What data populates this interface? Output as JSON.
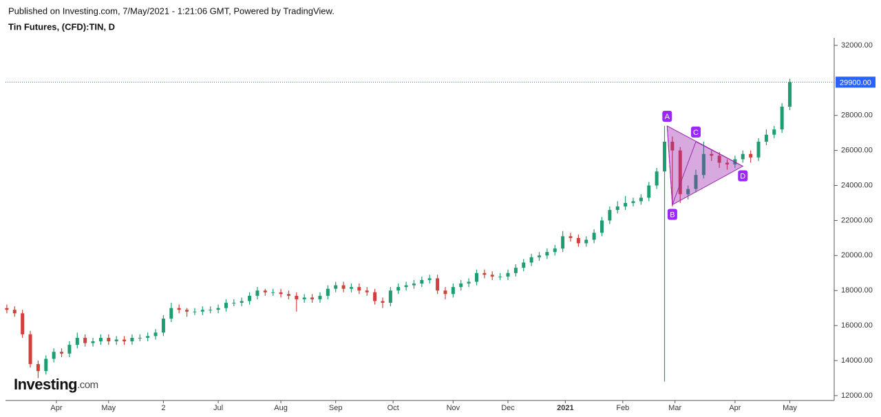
{
  "header": {
    "published": "Published on Investing.com, 7/May/2021 - 1:21:06 GMT, Powered by TradingView.",
    "symbol": "Tin Futures, (CFD):TIN, D"
  },
  "logo": {
    "brand": "Investing",
    "suffix": ".com"
  },
  "chart_data": {
    "type": "candlestick",
    "up_color": "#1f9d72",
    "down_color": "#d3403a",
    "x": [
      0,
      3,
      6,
      9,
      12,
      15,
      18,
      21,
      24,
      27,
      30,
      33,
      36,
      39,
      42,
      45,
      48,
      51,
      54,
      57,
      60,
      63,
      66,
      69,
      72,
      75,
      78,
      81,
      84,
      87,
      90,
      93,
      96,
      99,
      102,
      105,
      108,
      111,
      114,
      117,
      120,
      123,
      126,
      129,
      132,
      135,
      138,
      141,
      144,
      147,
      150,
      153,
      156,
      159,
      162,
      165,
      168,
      171,
      174,
      177,
      180,
      183,
      186,
      189,
      192,
      195,
      198,
      201,
      204,
      207,
      210,
      213,
      216,
      219,
      222,
      225,
      228,
      231,
      234,
      237,
      240,
      243,
      246,
      249,
      252,
      255,
      258,
      261,
      264,
      267,
      270,
      273,
      276,
      279,
      282,
      285,
      288,
      291,
      294,
      297,
      300
    ],
    "open": [
      17000,
      16900,
      16700,
      15500,
      13800,
      13400,
      14100,
      14500,
      14400,
      14900,
      15300,
      15000,
      15100,
      15300,
      15100,
      15200,
      15100,
      15300,
      15300,
      15400,
      15600,
      16400,
      17000,
      16900,
      16800,
      16800,
      16900,
      16900,
      17000,
      17300,
      17300,
      17400,
      17700,
      18000,
      17900,
      17900,
      17800,
      17700,
      17500,
      17600,
      17500,
      17700,
      18100,
      18300,
      18100,
      18200,
      18000,
      17900,
      17400,
      17300,
      18000,
      18200,
      18300,
      18400,
      18600,
      18700,
      18000,
      17800,
      18200,
      18400,
      18500,
      19000,
      18900,
      18800,
      18800,
      19000,
      19300,
      19600,
      19900,
      20000,
      20200,
      20400,
      21100,
      21000,
      20700,
      20900,
      21300,
      22000,
      22600,
      22800,
      23000,
      23100,
      23300,
      24000,
      24800,
      26500,
      26000,
      23500,
      23800,
      24600,
      25800,
      25700,
      25300,
      25200,
      25500,
      25800,
      25600,
      26500,
      26900,
      27200,
      28500
    ],
    "high": [
      17200,
      17100,
      16900,
      15700,
      14000,
      14300,
      14700,
      14700,
      15100,
      15600,
      15500,
      15300,
      15500,
      15500,
      15400,
      15400,
      15500,
      15500,
      15600,
      15800,
      16600,
      17300,
      17200,
      17000,
      17000,
      17100,
      17100,
      17200,
      17500,
      17500,
      17600,
      17900,
      18200,
      18100,
      18100,
      18100,
      18000,
      17900,
      17800,
      17800,
      17900,
      18300,
      18500,
      18500,
      18400,
      18400,
      18200,
      18100,
      17600,
      18200,
      18400,
      18500,
      18600,
      18800,
      18900,
      18900,
      18200,
      18400,
      18600,
      18700,
      19200,
      19200,
      19100,
      19000,
      19200,
      19500,
      19800,
      20100,
      20200,
      20400,
      20600,
      21400,
      21300,
      21200,
      21100,
      21500,
      22200,
      22800,
      23100,
      23400,
      23300,
      23500,
      24200,
      25000,
      27400,
      26800,
      26200,
      24000,
      24900,
      26500,
      26000,
      25900,
      25500,
      25700,
      26000,
      26000,
      26700,
      27200,
      27400,
      28700,
      30100
    ],
    "low": [
      16700,
      16500,
      15300,
      13600,
      13000,
      13200,
      13900,
      14200,
      14200,
      14700,
      14800,
      14800,
      14900,
      14900,
      14900,
      14900,
      14900,
      15100,
      15100,
      15200,
      15400,
      16200,
      16700,
      16500,
      16600,
      16600,
      16700,
      16700,
      16800,
      17100,
      17100,
      17200,
      17500,
      17700,
      17700,
      17600,
      17500,
      16800,
      17300,
      17300,
      17300,
      17500,
      17900,
      17900,
      17900,
      17800,
      17700,
      17200,
      17000,
      17100,
      17800,
      18000,
      18100,
      18200,
      18400,
      17800,
      17500,
      17600,
      18000,
      18200,
      18300,
      18700,
      18600,
      18600,
      18600,
      18800,
      19100,
      19400,
      19700,
      19800,
      20000,
      20200,
      20800,
      20500,
      20500,
      20700,
      21100,
      21800,
      22400,
      22600,
      22800,
      22900,
      23100,
      23800,
      12800,
      22800,
      23000,
      23200,
      23600,
      24400,
      25400,
      25000,
      24900,
      25000,
      25300,
      25300,
      25400,
      26300,
      26700,
      27000,
      28300
    ],
    "close": [
      16900,
      16700,
      15500,
      13800,
      13400,
      14100,
      14500,
      14400,
      14900,
      15300,
      15000,
      15100,
      15300,
      15100,
      15200,
      15100,
      15300,
      15300,
      15400,
      15600,
      16400,
      17000,
      16900,
      16800,
      16800,
      16900,
      16900,
      17000,
      17300,
      17300,
      17400,
      17700,
      18000,
      17900,
      17900,
      17800,
      17700,
      17500,
      17600,
      17500,
      17700,
      18100,
      18300,
      18100,
      18200,
      18000,
      17900,
      17400,
      17300,
      18000,
      18200,
      18300,
      18400,
      18600,
      18700,
      18000,
      17800,
      18200,
      18400,
      18500,
      19000,
      18900,
      18800,
      18800,
      19000,
      19300,
      19600,
      19900,
      20000,
      20200,
      20400,
      21100,
      21000,
      20700,
      20900,
      21300,
      22000,
      22600,
      22800,
      23000,
      23100,
      23300,
      24000,
      24800,
      26500,
      26000,
      23500,
      23800,
      24600,
      25800,
      25700,
      25300,
      25200,
      25500,
      25800,
      25600,
      26500,
      26900,
      27200,
      28500,
      29900
    ],
    "xlim": [
      -0.5,
      317
    ],
    "xticks": [
      {
        "value": 19,
        "label": "Apr"
      },
      {
        "value": 39,
        "label": "May"
      },
      {
        "value": 60,
        "label": "2"
      },
      {
        "value": 81,
        "label": "Jul"
      },
      {
        "value": 105,
        "label": "Aug"
      },
      {
        "value": 126,
        "label": "Sep"
      },
      {
        "value": 148,
        "label": "Oct"
      },
      {
        "value": 171,
        "label": "Nov"
      },
      {
        "value": 192,
        "label": "Dec"
      },
      {
        "value": 214,
        "label": "2021"
      },
      {
        "value": 236,
        "label": "Feb"
      },
      {
        "value": 256,
        "label": "Mar"
      },
      {
        "value": 279,
        "label": "Apr"
      },
      {
        "value": 300,
        "label": "May"
      }
    ],
    "ylim": [
      11800,
      32430
    ],
    "yticks": [
      {
        "value": 12000,
        "label": "12000.00"
      },
      {
        "value": 14000,
        "label": "14000.00"
      },
      {
        "value": 16000,
        "label": "16000.00"
      },
      {
        "value": 18000,
        "label": "18000.00"
      },
      {
        "value": 20000,
        "label": "20000.00"
      },
      {
        "value": 22000,
        "label": "22000.00"
      },
      {
        "value": 24000,
        "label": "24000.00"
      },
      {
        "value": 26000,
        "label": "26000.00"
      },
      {
        "value": 28000,
        "label": "28000.00"
      },
      {
        "value": 32000,
        "label": "32000.00"
      }
    ],
    "last_price": {
      "value": 29900,
      "label": "29900.00",
      "color": "#2962ff"
    },
    "pattern": {
      "color": "#9c27b0",
      "points": [
        {
          "label": "A",
          "x": 253,
          "y": 27400
        },
        {
          "label": "B",
          "x": 255,
          "y": 22900
        },
        {
          "label": "C",
          "x": 264,
          "y": 26500
        },
        {
          "label": "D",
          "x": 282,
          "y": 25100
        }
      ]
    }
  }
}
